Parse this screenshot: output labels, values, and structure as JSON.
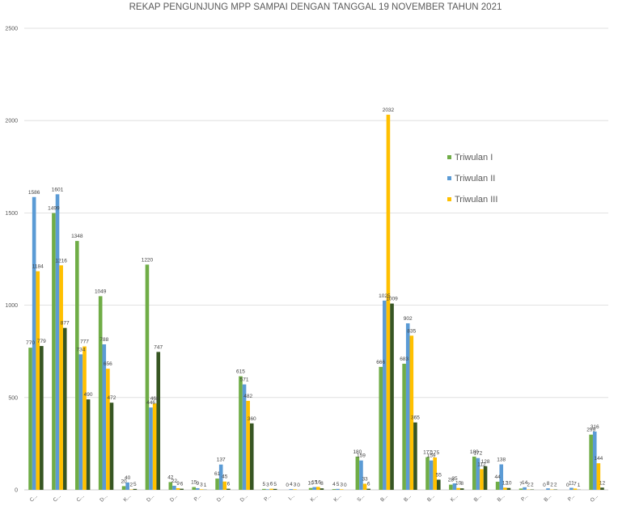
{
  "chart_data": {
    "type": "bar",
    "title": "REKAP PENGUNJUNG  MPP SAMPAI DENGAN TANGGAL 19 NOVEMBER TAHUN 2021",
    "xlabel": "",
    "ylabel": "",
    "ylim": [
      0,
      2500
    ],
    "yticks": [
      0,
      500,
      1000,
      1500,
      2000,
      2500
    ],
    "grid": true,
    "legend_position": "right",
    "categories": [
      "C...",
      "C...",
      "C...",
      "D...",
      "K...",
      "D...",
      "D...",
      "P...",
      "D...",
      "D...",
      "P...",
      "I...",
      "K...",
      "K...",
      "S...",
      "B...",
      "B...",
      "B...",
      "K...",
      "B...",
      "B...",
      "P...",
      "B...",
      "P...",
      "O..."
    ],
    "series": [
      {
        "name": "Triwulan I",
        "color": "#70ad47",
        "in_legend": true,
        "values": [
          770,
          1499,
          1348,
          1049,
          20,
          1220,
          42,
          15,
          61,
          615,
          5,
          0,
          10,
          4,
          180,
          666,
          683,
          177,
          28,
          180,
          44,
          7,
          0,
          0,
          299
        ]
      },
      {
        "name": "Triwulan II",
        "color": "#5b9bd5",
        "in_legend": true,
        "values": [
          1586,
          1601,
          734,
          788,
          40,
          446,
          22,
          9,
          137,
          571,
          3,
          4,
          15,
          5,
          159,
          1025,
          902,
          159,
          35,
          172,
          138,
          14,
          8,
          11,
          316
        ]
      },
      {
        "name": "Triwulan III",
        "color": "#ffc000",
        "in_legend": true,
        "values": [
          1184,
          1216,
          777,
          656,
          2,
          468,
          9,
          3,
          45,
          482,
          6,
          3,
          16,
          3,
          33,
          2032,
          835,
          175,
          10,
          112,
          12,
          2,
          2,
          7,
          144
        ]
      },
      {
        "name": "",
        "color": "#375623",
        "in_legend": false,
        "values": [
          779,
          877,
          490,
          472,
          5,
          747,
          6,
          1,
          6,
          360,
          5,
          0,
          8,
          0,
          6,
          1009,
          365,
          55,
          8,
          128,
          10,
          2,
          2,
          1,
          12
        ]
      }
    ],
    "data_labels": true
  },
  "legend": {
    "items": [
      "Triwulan I",
      "Triwulan II",
      "Triwulan III"
    ]
  }
}
